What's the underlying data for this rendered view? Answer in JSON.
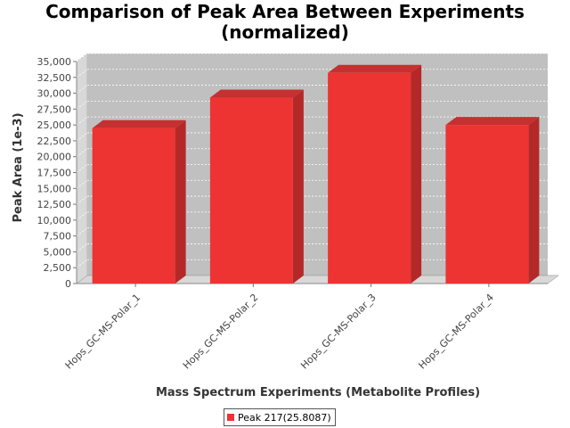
{
  "title_line1": "Comparison of Peak Area Between Experiments",
  "title_line2": "(normalized)",
  "chart_data": {
    "type": "bar",
    "title": "Comparison of Peak Area Between Experiments (normalized)",
    "xlabel": "Mass Spectrum Experiments (Metabolite Profiles)",
    "ylabel": "Peak Area (1e-3)",
    "categories": [
      "Hops_GC-MS-Polar_1",
      "Hops_GC-MS-Polar_2",
      "Hops_GC-MS-Polar_3",
      "Hops_GC-MS-Polar_4"
    ],
    "series": [
      {
        "name": "Peak 217(25.8087)",
        "values": [
          24500,
          29300,
          33200,
          25000
        ],
        "color": "#ee3333"
      }
    ],
    "ylim": [
      0,
      35000
    ],
    "yticks": [
      0,
      2500,
      5000,
      7500,
      10000,
      12500,
      15000,
      17500,
      20000,
      22500,
      25000,
      27500,
      30000,
      32500,
      35000
    ],
    "ytick_labels": [
      "0",
      "2,500",
      "5,000",
      "7,500",
      "10,000",
      "12,500",
      "15,000",
      "17,500",
      "20,000",
      "22,500",
      "25,000",
      "27,500",
      "30,000",
      "32,500",
      "35,000"
    ],
    "grid": true,
    "legend_position": "bottom",
    "plot_background": "#c0c0c0"
  }
}
